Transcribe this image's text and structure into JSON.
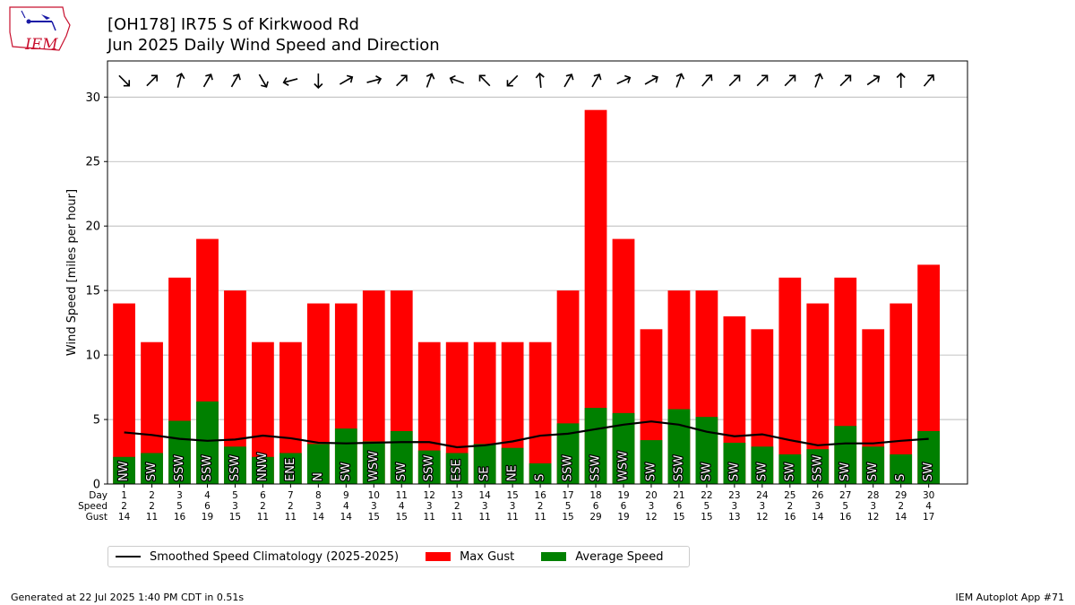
{
  "header": {
    "title_line1": "[OH178] IR75 S of Kirkwood Rd",
    "title_line2": "Jun 2025 Daily Wind Speed and Direction"
  },
  "logo": {
    "text": "IEM",
    "icon": "iowa-state-map-logo"
  },
  "footer": {
    "generated": "Generated at 22 Jul 2025 1:40 PM CDT in 0.51s",
    "app": "IEM Autoplot App #71"
  },
  "legend": {
    "items": [
      {
        "label": "Smoothed Speed Climatology (2025-2025)",
        "color": "#000000",
        "kind": "line"
      },
      {
        "label": "Max Gust",
        "color": "#ff0000",
        "kind": "box"
      },
      {
        "label": "Average Speed",
        "color": "#008000",
        "kind": "box"
      }
    ]
  },
  "chart_data": {
    "type": "bar",
    "ylabel": "Wind Speed [miles per hour]",
    "ylim": [
      0,
      32.8
    ],
    "yticks": [
      0,
      5,
      10,
      15,
      20,
      25,
      30
    ],
    "grid": "horizontal",
    "row_labels": [
      "Day",
      "Speed",
      "Gust"
    ],
    "days": [
      1,
      2,
      3,
      4,
      5,
      6,
      7,
      8,
      9,
      10,
      11,
      12,
      13,
      14,
      15,
      16,
      17,
      18,
      19,
      20,
      21,
      22,
      23,
      24,
      25,
      26,
      27,
      28,
      29,
      30
    ],
    "speed_labels": [
      2,
      2,
      5,
      6,
      3,
      2,
      2,
      3,
      4,
      3,
      4,
      3,
      2,
      3,
      3,
      2,
      5,
      6,
      6,
      3,
      6,
      5,
      3,
      3,
      2,
      3,
      5,
      3,
      2,
      4
    ],
    "gust": [
      14,
      11,
      16,
      19,
      15,
      11,
      11,
      14,
      14,
      15,
      15,
      11,
      11,
      11,
      11,
      11,
      15,
      29,
      19,
      12,
      15,
      15,
      13,
      12,
      16,
      14,
      16,
      12,
      14,
      17
    ],
    "avg_speed": [
      2.1,
      2.4,
      4.9,
      6.4,
      2.9,
      2.1,
      2.4,
      3.1,
      4.3,
      3.3,
      4.1,
      2.6,
      2.4,
      3.1,
      2.8,
      1.6,
      4.7,
      5.9,
      5.5,
      3.4,
      5.8,
      5.2,
      3.2,
      2.9,
      2.3,
      2.7,
      4.5,
      2.9,
      2.3,
      4.1
    ],
    "direction": [
      "NW",
      "SW",
      "SSW",
      "SSW",
      "SSW",
      "NNW",
      "ENE",
      "N",
      "SW",
      "WSW",
      "SW",
      "SSW",
      "ESE",
      "SE",
      "NE",
      "S",
      "SSW",
      "SSW",
      "WSW",
      "SW",
      "SSW",
      "SW",
      "SW",
      "SW",
      "SW",
      "SSW",
      "SW",
      "SW",
      "S",
      "SW"
    ],
    "arrow_toward_deg": [
      135,
      45,
      15,
      30,
      30,
      150,
      255,
      180,
      60,
      75,
      45,
      20,
      290,
      315,
      225,
      355,
      30,
      30,
      65,
      60,
      20,
      40,
      45,
      45,
      45,
      20,
      45,
      55,
      0,
      40
    ],
    "climatology": [
      4.0,
      3.8,
      3.5,
      3.35,
      3.45,
      3.75,
      3.55,
      3.2,
      3.15,
      3.2,
      3.25,
      3.25,
      2.85,
      3.0,
      3.3,
      3.75,
      3.9,
      4.25,
      4.6,
      4.85,
      4.6,
      4.05,
      3.7,
      3.85,
      3.4,
      3.0,
      3.15,
      3.15,
      3.35,
      3.5
    ]
  }
}
